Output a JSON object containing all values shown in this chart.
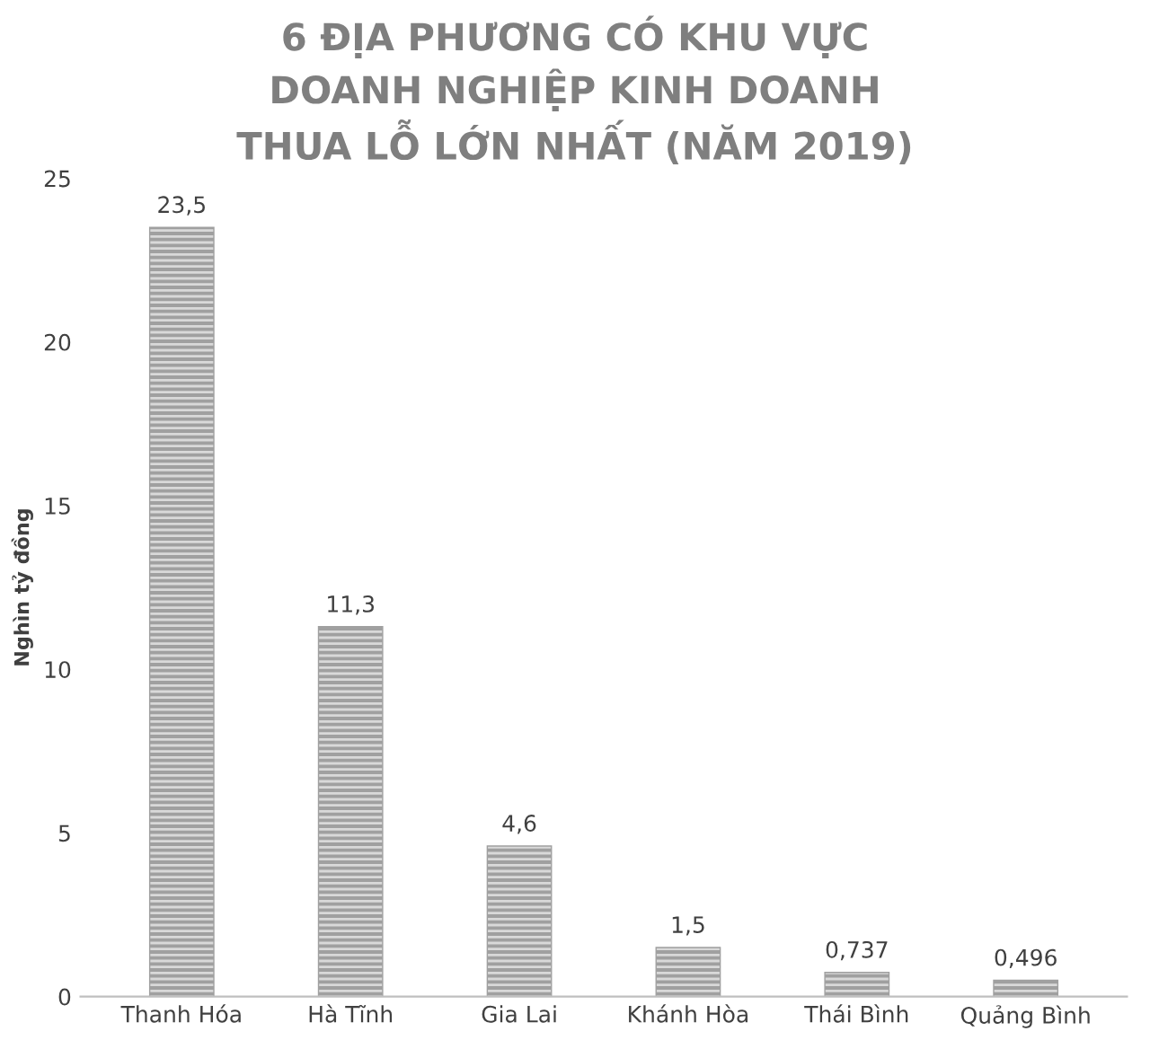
{
  "chart_data": {
    "type": "bar",
    "title": "6 ĐỊA PHƯƠNG CÓ KHU VỰC\nDOANH NGHIỆP KINH DOANH\nTHUA LỖ LỚN NHẤT (NĂM 2019)",
    "ylabel": "Nghìn tỷ đồng",
    "categories": [
      "Thanh Hóa",
      "Hà Tĩnh",
      "Gia Lai",
      "Khánh Hòa",
      "Thái Bình",
      "Quảng Bình"
    ],
    "values": [
      23.5,
      11.3,
      4.6,
      1.5,
      0.737,
      0.496
    ],
    "value_labels": [
      "23,5",
      "11,3",
      "4,6",
      "1,5",
      "0,737",
      "0,496"
    ],
    "color": "#a0a0a0",
    "ylim": [
      0,
      25
    ],
    "yticks": [
      0,
      5,
      10,
      15,
      20,
      25
    ],
    "grid": false
  }
}
